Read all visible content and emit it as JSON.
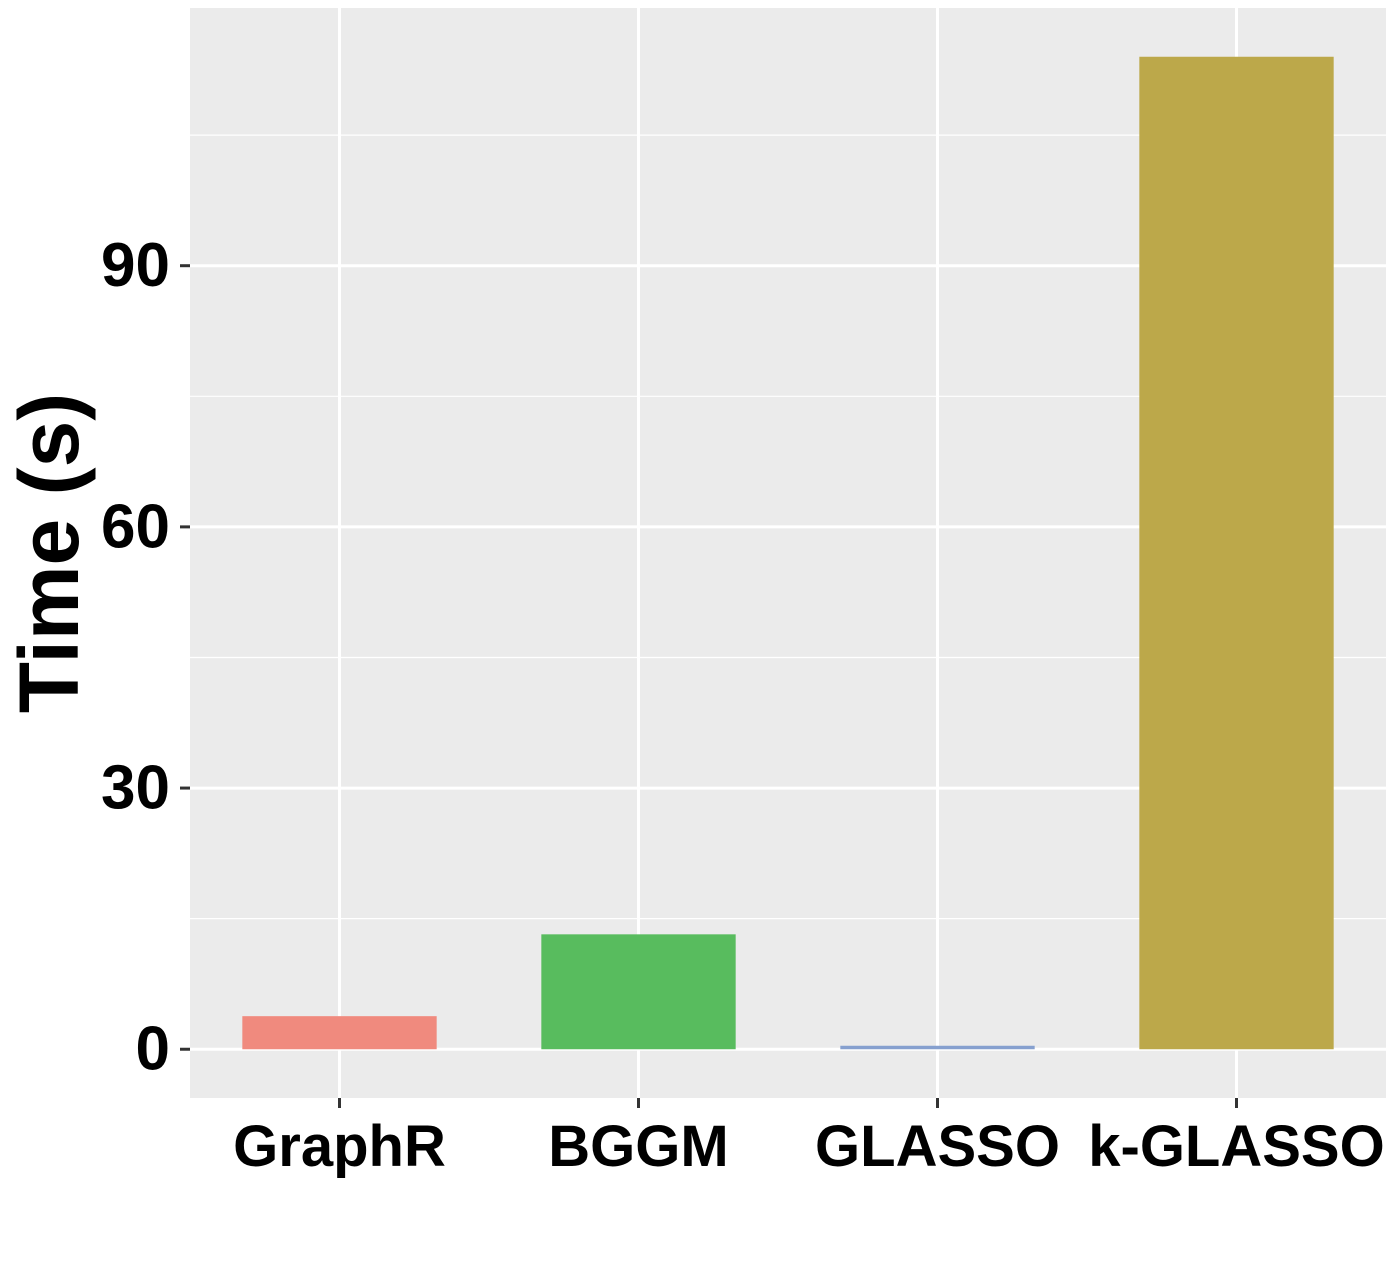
{
  "chart_data": {
    "type": "bar",
    "title": "",
    "xlabel": "",
    "ylabel": "Time (s)",
    "categories": [
      "GraphR",
      "BGGM",
      "GLASSO",
      "k-GLASSO"
    ],
    "values": [
      3.8,
      13.2,
      0.4,
      114
    ],
    "colors": [
      "#f08a7e",
      "#58bc5e",
      "#86a0cf",
      "#bca84a"
    ],
    "yticks": [
      0,
      30,
      60,
      90
    ],
    "ytick_labels": [
      "0",
      "30",
      "60",
      "90"
    ],
    "ylim": [
      -5.6,
      119.6
    ],
    "grid": true,
    "legend": "none",
    "panel_background": "#ebebeb",
    "grid_color": "#ffffff"
  }
}
